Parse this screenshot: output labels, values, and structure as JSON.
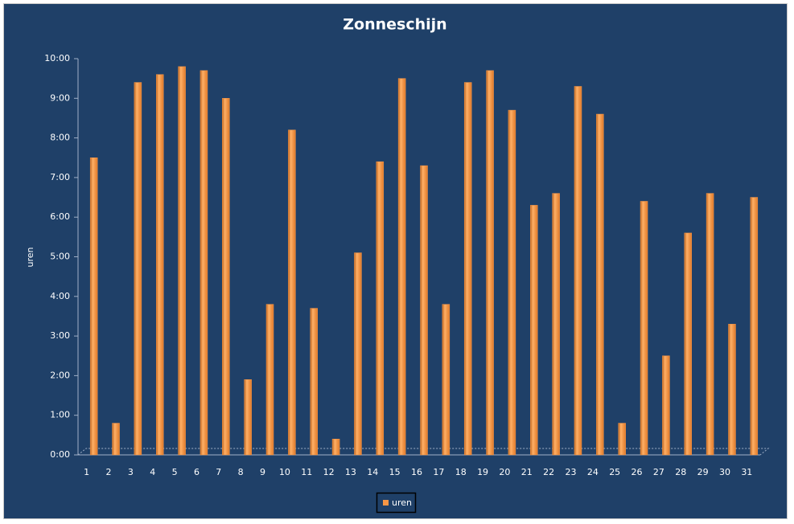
{
  "chart_data": {
    "type": "bar",
    "title": "Zonneschijn",
    "y_label": "uren",
    "categories": [
      "1",
      "2",
      "3",
      "4",
      "5",
      "6",
      "7",
      "8",
      "9",
      "10",
      "11",
      "12",
      "13",
      "14",
      "15",
      "16",
      "17",
      "18",
      "19",
      "20",
      "21",
      "22",
      "23",
      "24",
      "25",
      "26",
      "27",
      "28",
      "29",
      "30",
      "31"
    ],
    "series": [
      {
        "name": "uren",
        "color": "#f79646",
        "values": [
          7.5,
          0.8,
          9.4,
          9.6,
          9.8,
          9.7,
          9.0,
          1.9,
          3.8,
          8.2,
          3.7,
          0.4,
          5.1,
          7.4,
          9.5,
          7.3,
          3.8,
          9.4,
          9.7,
          8.7,
          6.3,
          6.6,
          9.3,
          8.6,
          0.8,
          6.4,
          2.5,
          5.6,
          6.6,
          3.3,
          6.5
        ]
      }
    ],
    "ylim": [
      0,
      10
    ],
    "yticks": [
      {
        "value": 0,
        "label": "0:00"
      },
      {
        "value": 1,
        "label": "1:00"
      },
      {
        "value": 2,
        "label": "2:00"
      },
      {
        "value": 3,
        "label": "3:00"
      },
      {
        "value": 4,
        "label": "4:00"
      },
      {
        "value": 5,
        "label": "5:00"
      },
      {
        "value": 6,
        "label": "6:00"
      },
      {
        "value": 7,
        "label": "7:00"
      },
      {
        "value": 8,
        "label": "8:00"
      },
      {
        "value": 9,
        "label": "9:00"
      },
      {
        "value": 10,
        "label": "10:00"
      }
    ],
    "legend": "bottom"
  }
}
